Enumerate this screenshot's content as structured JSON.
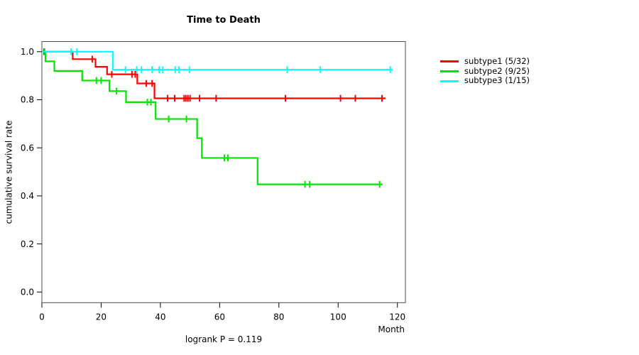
{
  "chart_data": {
    "type": "line",
    "variant": "kaplan-meier-step",
    "title": "Time to Death",
    "xlabel": "Month",
    "ylabel": "cumulative survival rate",
    "annotation": "logrank P = 0.119",
    "xlim": [
      0,
      120
    ],
    "ylim": [
      0.0,
      1.0
    ],
    "x_ticks": [
      0,
      20,
      40,
      60,
      80,
      100,
      120
    ],
    "x_tick_labels": [
      "0",
      "20",
      "40",
      "60",
      "80",
      "100",
      "120"
    ],
    "y_ticks": [
      0.0,
      0.2,
      0.4,
      0.6,
      0.8,
      1.0
    ],
    "y_tick_labels": [
      "0.0",
      "0.2",
      "0.4",
      "0.6",
      "0.8",
      "1.0"
    ],
    "grid": false,
    "legend_position": "right-outside",
    "series": [
      {
        "name": "subtype1 (5/32)",
        "color": "#ff0000",
        "steps": [
          [
            0,
            1.0
          ],
          [
            10.4,
            0.969
          ],
          [
            18.1,
            0.937
          ],
          [
            22.0,
            0.906
          ],
          [
            32.2,
            0.868
          ],
          [
            38.0,
            0.806
          ]
        ],
        "end": 116.0,
        "censors": [
          [
            0.7,
            1.0
          ],
          [
            17.0,
            0.969
          ],
          [
            23.6,
            0.906
          ],
          [
            30.4,
            0.906
          ],
          [
            31.5,
            0.906
          ],
          [
            35.2,
            0.868
          ],
          [
            37.2,
            0.868
          ],
          [
            42.4,
            0.806
          ],
          [
            44.8,
            0.806
          ],
          [
            48.0,
            0.806
          ],
          [
            48.6,
            0.806
          ],
          [
            49.3,
            0.806
          ],
          [
            50.0,
            0.806
          ],
          [
            53.2,
            0.806
          ],
          [
            58.8,
            0.806
          ],
          [
            82.2,
            0.806
          ],
          [
            100.8,
            0.806
          ],
          [
            105.8,
            0.806
          ],
          [
            114.8,
            0.806
          ]
        ]
      },
      {
        "name": "subtype2 (9/25)",
        "color": "#00e400",
        "steps": [
          [
            0,
            1.0
          ],
          [
            1.2,
            0.96
          ],
          [
            4.2,
            0.92
          ],
          [
            13.6,
            0.88
          ],
          [
            22.8,
            0.836
          ],
          [
            28.4,
            0.79
          ],
          [
            38.4,
            0.72
          ],
          [
            52.4,
            0.64
          ],
          [
            54.0,
            0.558
          ],
          [
            72.8,
            0.448
          ]
        ],
        "end": 115.0,
        "censors": [
          [
            0.9,
            1.0
          ],
          [
            18.4,
            0.88
          ],
          [
            20.0,
            0.88
          ],
          [
            25.2,
            0.836
          ],
          [
            35.6,
            0.79
          ],
          [
            36.8,
            0.79
          ],
          [
            42.8,
            0.72
          ],
          [
            48.8,
            0.72
          ],
          [
            61.6,
            0.558
          ],
          [
            62.8,
            0.558
          ],
          [
            88.8,
            0.448
          ],
          [
            90.4,
            0.448
          ],
          [
            114.0,
            0.448
          ]
        ]
      },
      {
        "name": "subtype3 (1/15)",
        "color": "#00ffff",
        "steps": [
          [
            0,
            1.0
          ],
          [
            24.0,
            0.925
          ]
        ],
        "end": 118.4,
        "censors": [
          [
            9.8,
            1.0
          ],
          [
            11.8,
            1.0
          ],
          [
            28.2,
            0.925
          ],
          [
            32.0,
            0.925
          ],
          [
            33.6,
            0.925
          ],
          [
            37.2,
            0.925
          ],
          [
            39.6,
            0.925
          ],
          [
            40.8,
            0.925
          ],
          [
            45.0,
            0.925
          ],
          [
            46.2,
            0.925
          ],
          [
            49.8,
            0.925
          ],
          [
            82.8,
            0.925
          ],
          [
            94.0,
            0.925
          ],
          [
            117.6,
            0.925
          ]
        ]
      }
    ]
  }
}
